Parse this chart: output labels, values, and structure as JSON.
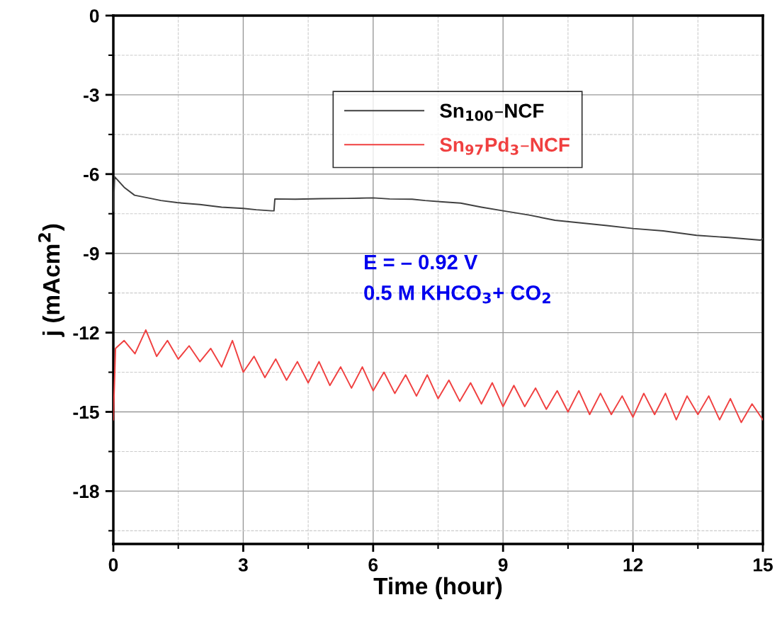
{
  "chart_data": {
    "type": "line",
    "xlabel": "Time (hour)",
    "ylabel": "j (mAcm$^{2}$)",
    "xlim": [
      0,
      15
    ],
    "ylim": [
      -20,
      0
    ],
    "xticks": [
      0,
      3,
      6,
      9,
      12,
      15
    ],
    "yticks": [
      0,
      -3,
      -6,
      -9,
      -12,
      -15,
      -18
    ],
    "grid": true,
    "legend": "top",
    "line_style": "solid",
    "marker": "none",
    "series": [
      {
        "name": "Sn$_{100}$–NCF",
        "color": "#404040",
        "x": [
          0,
          0.03,
          0.25,
          0.49,
          0.8,
          1.1,
          1.47,
          2.0,
          2.5,
          3.0,
          3.3,
          3.65,
          3.71,
          3.73,
          4.2,
          4.8,
          5.4,
          6.0,
          6.38,
          6.9,
          7.2,
          7.6,
          8.02,
          8.5,
          9.0,
          9.6,
          10.2,
          10.8,
          11.4,
          12.0,
          12.7,
          13.47,
          14.2,
          14.94,
          15.0
        ],
        "values": [
          -7.4,
          -6.1,
          -6.5,
          -6.8,
          -6.9,
          -7.0,
          -7.08,
          -7.15,
          -7.25,
          -7.3,
          -7.35,
          -7.39,
          -7.39,
          -6.94,
          -6.95,
          -6.93,
          -6.92,
          -6.9,
          -6.94,
          -6.95,
          -7.0,
          -7.05,
          -7.1,
          -7.25,
          -7.39,
          -7.55,
          -7.75,
          -7.85,
          -7.95,
          -8.06,
          -8.15,
          -8.32,
          -8.4,
          -8.5,
          -8.45
        ]
      },
      {
        "name": "Sn$_{97}$Pd$_{3}$–NCF",
        "color": "#f04040",
        "x": [
          0,
          0.05,
          0.25,
          0.5,
          0.75,
          1.0,
          1.25,
          1.5,
          1.75,
          2.0,
          2.25,
          2.5,
          2.75,
          3.0,
          3.25,
          3.5,
          3.75,
          4.0,
          4.25,
          4.5,
          4.75,
          5.0,
          5.25,
          5.5,
          5.75,
          6.0,
          6.25,
          6.5,
          6.75,
          7.0,
          7.25,
          7.5,
          7.75,
          8.0,
          8.25,
          8.5,
          8.75,
          9.0,
          9.25,
          9.5,
          9.75,
          10.0,
          10.25,
          10.5,
          10.75,
          11.0,
          11.25,
          11.5,
          11.75,
          12.0,
          12.25,
          12.5,
          12.75,
          13.0,
          13.25,
          13.5,
          13.75,
          14.0,
          14.25,
          14.5,
          14.75,
          15.0
        ],
        "values": [
          -15.3,
          -12.6,
          -12.3,
          -12.8,
          -11.9,
          -12.9,
          -12.3,
          -13.0,
          -12.5,
          -13.1,
          -12.6,
          -13.3,
          -12.3,
          -13.5,
          -12.9,
          -13.7,
          -13.0,
          -13.8,
          -13.1,
          -13.9,
          -13.1,
          -14.0,
          -13.3,
          -14.1,
          -13.3,
          -14.2,
          -13.5,
          -14.3,
          -13.6,
          -14.4,
          -13.6,
          -14.5,
          -13.8,
          -14.6,
          -13.9,
          -14.7,
          -13.9,
          -14.8,
          -14.0,
          -14.8,
          -14.1,
          -14.9,
          -14.2,
          -15.0,
          -14.2,
          -15.1,
          -14.3,
          -15.1,
          -14.4,
          -15.2,
          -14.3,
          -15.1,
          -14.3,
          -15.3,
          -14.4,
          -15.1,
          -14.4,
          -15.3,
          -14.5,
          -15.4,
          -14.7,
          -15.3
        ]
      }
    ],
    "annotations": [
      "E = – 0.92 V",
      "0.5 M KHCO$_{3}$+ CO$_{2}$"
    ]
  }
}
